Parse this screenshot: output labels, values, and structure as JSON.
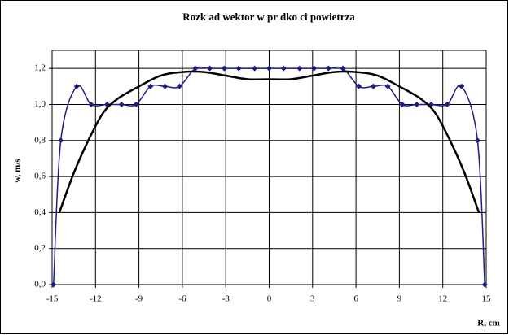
{
  "chart_data": {
    "type": "line",
    "title": "Rozk ad wektor  w pr  dko ci powietrza",
    "x_label": "R, cm",
    "y_label": "w, m/s",
    "grid": true,
    "xlim": [
      -15,
      15
    ],
    "xticks": [
      -15,
      -12,
      -9,
      -6,
      -3,
      0,
      3,
      6,
      9,
      12,
      15
    ],
    "ylim": [
      0,
      1.3
    ],
    "yticks": [
      {
        "value": 0,
        "label": "0,0"
      },
      {
        "value": 0.2,
        "label": "0,2"
      },
      {
        "value": 0.4,
        "label": "0,4"
      },
      {
        "value": 0.6,
        "label": "0,6"
      },
      {
        "value": 0.8,
        "label": "0,8"
      },
      {
        "value": 1.0,
        "label": "1,0"
      },
      {
        "value": 1.2,
        "label": "1,2"
      }
    ],
    "series": [
      {
        "color": "#1c1c8a",
        "markers": true,
        "x": [
          -14.9,
          -14.4,
          -13.3,
          -12.3,
          -11.2,
          -10.2,
          -9.2,
          -8.2,
          -7.2,
          -6.2,
          -5.1,
          -4.1,
          -3.1,
          -2.1,
          -1.0,
          0,
          1.0,
          2.1,
          3.1,
          4.1,
          5.1,
          6.2,
          7.2,
          8.2,
          9.2,
          10.2,
          11.2,
          12.3,
          13.3,
          14.4,
          14.9
        ],
        "values": [
          0,
          0.8,
          1.1,
          1.0,
          1.0,
          1.0,
          1.0,
          1.1,
          1.1,
          1.1,
          1.2,
          1.2,
          1.2,
          1.2,
          1.2,
          1.2,
          1.2,
          1.2,
          1.2,
          1.2,
          1.2,
          1.1,
          1.1,
          1.1,
          1.0,
          1.0,
          1.0,
          1.0,
          1.1,
          0.8,
          0
        ]
      },
      {
        "color": "#000000",
        "markers": false,
        "x": [
          -14.5,
          -13.5,
          -12.5,
          -11.5,
          -10.5,
          -9,
          -7.5,
          -6,
          -4.5,
          -3,
          -1.5,
          0,
          1.5,
          3,
          4.5,
          6,
          7.5,
          9,
          10.5,
          11.5,
          12.5,
          13.5,
          14.5
        ],
        "values": [
          0.4,
          0.62,
          0.8,
          0.95,
          1.03,
          1.1,
          1.16,
          1.18,
          1.18,
          1.16,
          1.14,
          1.14,
          1.14,
          1.16,
          1.18,
          1.18,
          1.16,
          1.1,
          1.03,
          0.95,
          0.8,
          0.62,
          0.4
        ]
      }
    ]
  }
}
